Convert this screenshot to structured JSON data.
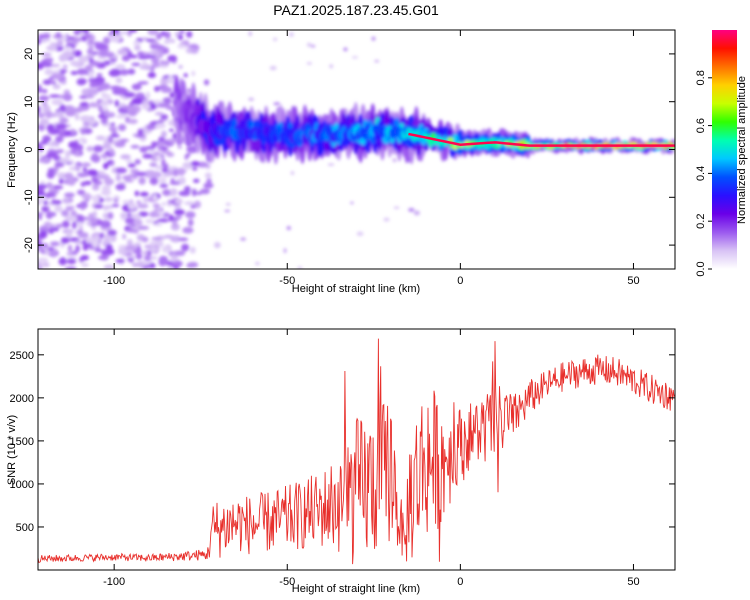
{
  "figure": {
    "title": "PAZ1.2025.187.23.45.G01"
  },
  "chart_data": [
    {
      "type": "heatmap",
      "xlabel": "Height of straight line (km)",
      "ylabel": "Frequency (Hz)",
      "xlim": [
        -122,
        62
      ],
      "ylim": [
        -25,
        25
      ],
      "xticks": [
        -100,
        -50,
        0,
        50
      ],
      "xtick_labels": [
        "-100",
        "-50",
        "0",
        "50"
      ],
      "yticks": [
        -20,
        -10,
        0,
        10,
        20
      ],
      "ytick_labels": [
        "-20",
        "-10",
        "0",
        "10",
        "20"
      ],
      "colorbar": {
        "label": "Normalized spectral amplitude",
        "range": [
          0,
          1
        ],
        "ticks": [
          0.0,
          0.2,
          0.4,
          0.6,
          0.8
        ],
        "tick_labels": [
          "0.0",
          "0.2",
          "0.4",
          "0.6",
          "0.8"
        ],
        "colormap": [
          "#ffffff",
          "#d8c2f5",
          "#9b59ef",
          "#6a00e8",
          "#2a10ff",
          "#0050ff",
          "#00c8ff",
          "#00ffb0",
          "#30ff00",
          "#c8ff00",
          "#ffd000",
          "#ff7000",
          "#ff1000",
          "#ff0080"
        ]
      },
      "dominant_ridge": {
        "x": [
          -80,
          -72,
          -60,
          -50,
          -40,
          -30,
          -20,
          -10,
          0,
          10,
          20,
          30,
          40,
          50,
          62
        ],
        "frequency_hz": [
          8,
          4,
          3.5,
          3,
          3,
          3.5,
          4,
          2.5,
          1,
          1.5,
          0.8,
          0.8,
          0.8,
          0.8,
          0.8
        ],
        "amplitude": [
          0.15,
          0.3,
          0.35,
          0.35,
          0.35,
          0.4,
          0.4,
          0.45,
          0.6,
          0.6,
          0.75,
          0.85,
          0.9,
          0.95,
          0.98
        ]
      },
      "grid": false
    },
    {
      "type": "line",
      "xlabel": "Height of straight line (km)",
      "ylabel": "SNR (10 * v/v)",
      "xlim": [
        -122,
        62
      ],
      "ylim": [
        0,
        2800
      ],
      "xticks": [
        -100,
        -50,
        0,
        50
      ],
      "xtick_labels": [
        "-100",
        "-50",
        "0",
        "50"
      ],
      "yticks": [
        500,
        1000,
        1500,
        2000,
        2500
      ],
      "ytick_labels": [
        "500",
        "1000",
        "1500",
        "2000",
        "2500"
      ],
      "series": [
        {
          "color": "#e8302c",
          "x": [
            -122,
            -110,
            -100,
            -90,
            -80,
            -73,
            -72,
            -65,
            -60,
            -50,
            -40,
            -30,
            -25,
            -20,
            -16,
            -15,
            -10,
            -5,
            0,
            5,
            10,
            15,
            20,
            25,
            30,
            35,
            40,
            45,
            50,
            55,
            62
          ],
          "values": [
            130,
            140,
            150,
            140,
            160,
            180,
            450,
            550,
            520,
            600,
            700,
            900,
            1000,
            1200,
            250,
            800,
            1300,
            1250,
            1500,
            1600,
            1700,
            1750,
            2000,
            2150,
            2250,
            2300,
            2330,
            2300,
            2200,
            2100,
            2000
          ],
          "envelope": [
            60,
            60,
            60,
            60,
            80,
            100,
            500,
            500,
            500,
            550,
            650,
            1100,
            1100,
            1100,
            200,
            1000,
            1200,
            900,
            500,
            500,
            600,
            400,
            300,
            250,
            250,
            250,
            250,
            250,
            250,
            250,
            250
          ]
        }
      ],
      "grid": false
    }
  ]
}
